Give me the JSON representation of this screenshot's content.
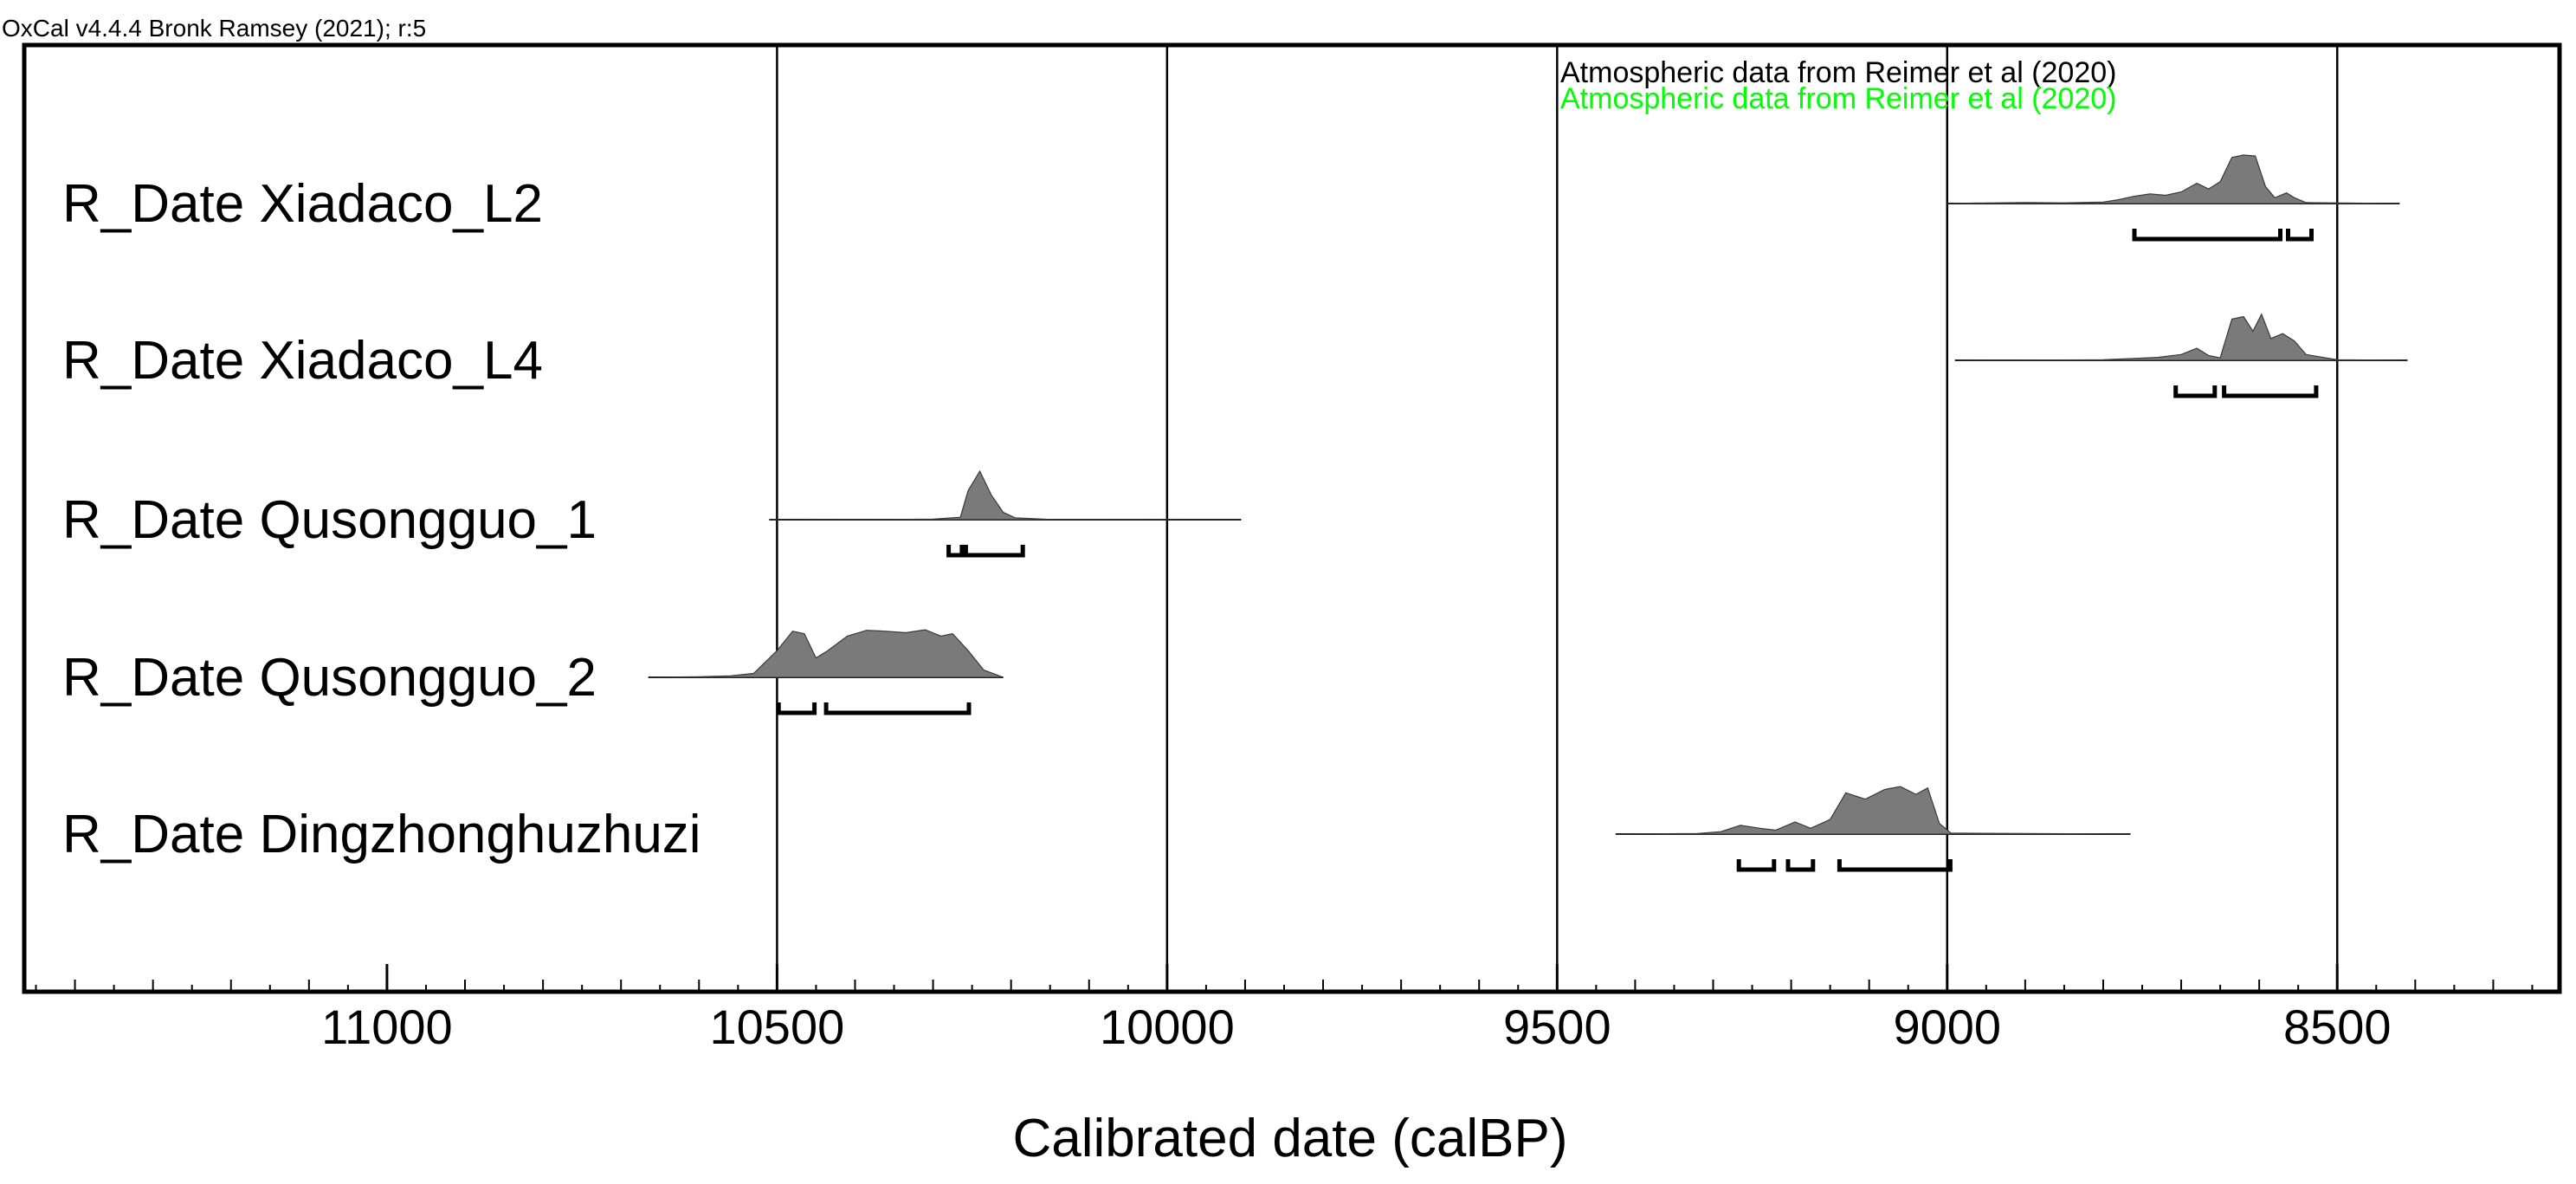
{
  "header": {
    "software": "OxCal v4.4.4 Bronk Ramsey (2021); r:5"
  },
  "chart_data": {
    "type": "area",
    "title": "",
    "xlabel": "Calibrated date (calBP)",
    "ylabel": "",
    "xlim": [
      11465,
      8215
    ],
    "x_reversed": true,
    "grid": "vertical lines at every 500 years",
    "xticks": [
      11000,
      10500,
      10000,
      9500,
      9000,
      8500
    ],
    "annotations": [
      {
        "text": "Atmospheric data from Reimer et al (2020)",
        "color": "#000000"
      },
      {
        "text": "Atmospheric data from Reimer et al (2020)",
        "color": "#00ff00"
      }
    ],
    "colors": {
      "distribution_fill": "#7a7a7a",
      "line": "#000000",
      "note_green": "#00ff00"
    },
    "series": [
      {
        "name": "R_Date Xiadaco_L2",
        "prob": [
          [
            9000,
            0
          ],
          [
            8950,
            0.012
          ],
          [
            8900,
            0.02
          ],
          [
            8850,
            0.015
          ],
          [
            8800,
            0.03
          ],
          [
            8780,
            0.08
          ],
          [
            8760,
            0.15
          ],
          [
            8740,
            0.2
          ],
          [
            8720,
            0.17
          ],
          [
            8700,
            0.24
          ],
          [
            8680,
            0.42
          ],
          [
            8665,
            0.3
          ],
          [
            8650,
            0.45
          ],
          [
            8635,
            0.95
          ],
          [
            8620,
            1
          ],
          [
            8605,
            0.98
          ],
          [
            8592,
            0.35
          ],
          [
            8580,
            0.12
          ],
          [
            8565,
            0.22
          ],
          [
            8555,
            0.12
          ],
          [
            8540,
            0.02
          ],
          [
            8420,
            0
          ]
        ],
        "ranges_95": [
          [
            8760,
            8573
          ],
          [
            8563,
            8533
          ]
        ]
      },
      {
        "name": "R_Date Xiadaco_L4",
        "prob": [
          [
            8990,
            0
          ],
          [
            8900,
            0.005
          ],
          [
            8800,
            0.01
          ],
          [
            8760,
            0.04
          ],
          [
            8730,
            0.06
          ],
          [
            8700,
            0.12
          ],
          [
            8680,
            0.25
          ],
          [
            8665,
            0.1
          ],
          [
            8650,
            0.05
          ],
          [
            8635,
            0.85
          ],
          [
            8620,
            0.9
          ],
          [
            8608,
            0.6
          ],
          [
            8597,
            0.95
          ],
          [
            8585,
            0.45
          ],
          [
            8570,
            0.55
          ],
          [
            8555,
            0.4
          ],
          [
            8540,
            0.12
          ],
          [
            8500,
            0.01
          ],
          [
            8410,
            0
          ]
        ],
        "ranges_95": [
          [
            8707,
            8657
          ],
          [
            8645,
            8527
          ]
        ]
      },
      {
        "name": "R_Date Qusongguo_1",
        "prob": [
          [
            10510,
            0
          ],
          [
            10350,
            0.005
          ],
          [
            10300,
            0.01
          ],
          [
            10265,
            0.05
          ],
          [
            10255,
            0.6
          ],
          [
            10240,
            1
          ],
          [
            10225,
            0.5
          ],
          [
            10210,
            0.15
          ],
          [
            10195,
            0.04
          ],
          [
            10150,
            0.005
          ],
          [
            9905,
            0
          ]
        ],
        "ranges_95": [
          [
            10280,
            10263
          ],
          [
            10258,
            10185
          ]
        ]
      },
      {
        "name": "R_Date Qusongguo_2",
        "prob": [
          [
            10665,
            0
          ],
          [
            10600,
            0.01
          ],
          [
            10560,
            0.03
          ],
          [
            10530,
            0.08
          ],
          [
            10500,
            0.55
          ],
          [
            10480,
            0.95
          ],
          [
            10465,
            0.9
          ],
          [
            10450,
            0.4
          ],
          [
            10435,
            0.55
          ],
          [
            10410,
            0.85
          ],
          [
            10385,
            0.97
          ],
          [
            10360,
            0.95
          ],
          [
            10335,
            0.92
          ],
          [
            10310,
            0.98
          ],
          [
            10290,
            0.85
          ],
          [
            10275,
            0.9
          ],
          [
            10255,
            0.55
          ],
          [
            10235,
            0.15
          ],
          [
            10210,
            0
          ]
        ],
        "ranges_95": [
          [
            10498,
            10452
          ],
          [
            10437,
            10254
          ]
        ]
      },
      {
        "name": "R_Date Dingzhonghuzhuzi",
        "prob": [
          [
            9425,
            0
          ],
          [
            9320,
            0.01
          ],
          [
            9290,
            0.05
          ],
          [
            9265,
            0.18
          ],
          [
            9240,
            0.12
          ],
          [
            9220,
            0.08
          ],
          [
            9195,
            0.25
          ],
          [
            9175,
            0.12
          ],
          [
            9150,
            0.3
          ],
          [
            9130,
            0.85
          ],
          [
            9105,
            0.72
          ],
          [
            9080,
            0.92
          ],
          [
            9060,
            0.98
          ],
          [
            9040,
            0.82
          ],
          [
            9025,
            0.95
          ],
          [
            9010,
            0.22
          ],
          [
            8995,
            0.02
          ],
          [
            8765,
            0
          ]
        ],
        "ranges_95": [
          [
            9267,
            9222
          ],
          [
            9204,
            9172
          ],
          [
            9138,
            8996
          ]
        ]
      }
    ]
  }
}
